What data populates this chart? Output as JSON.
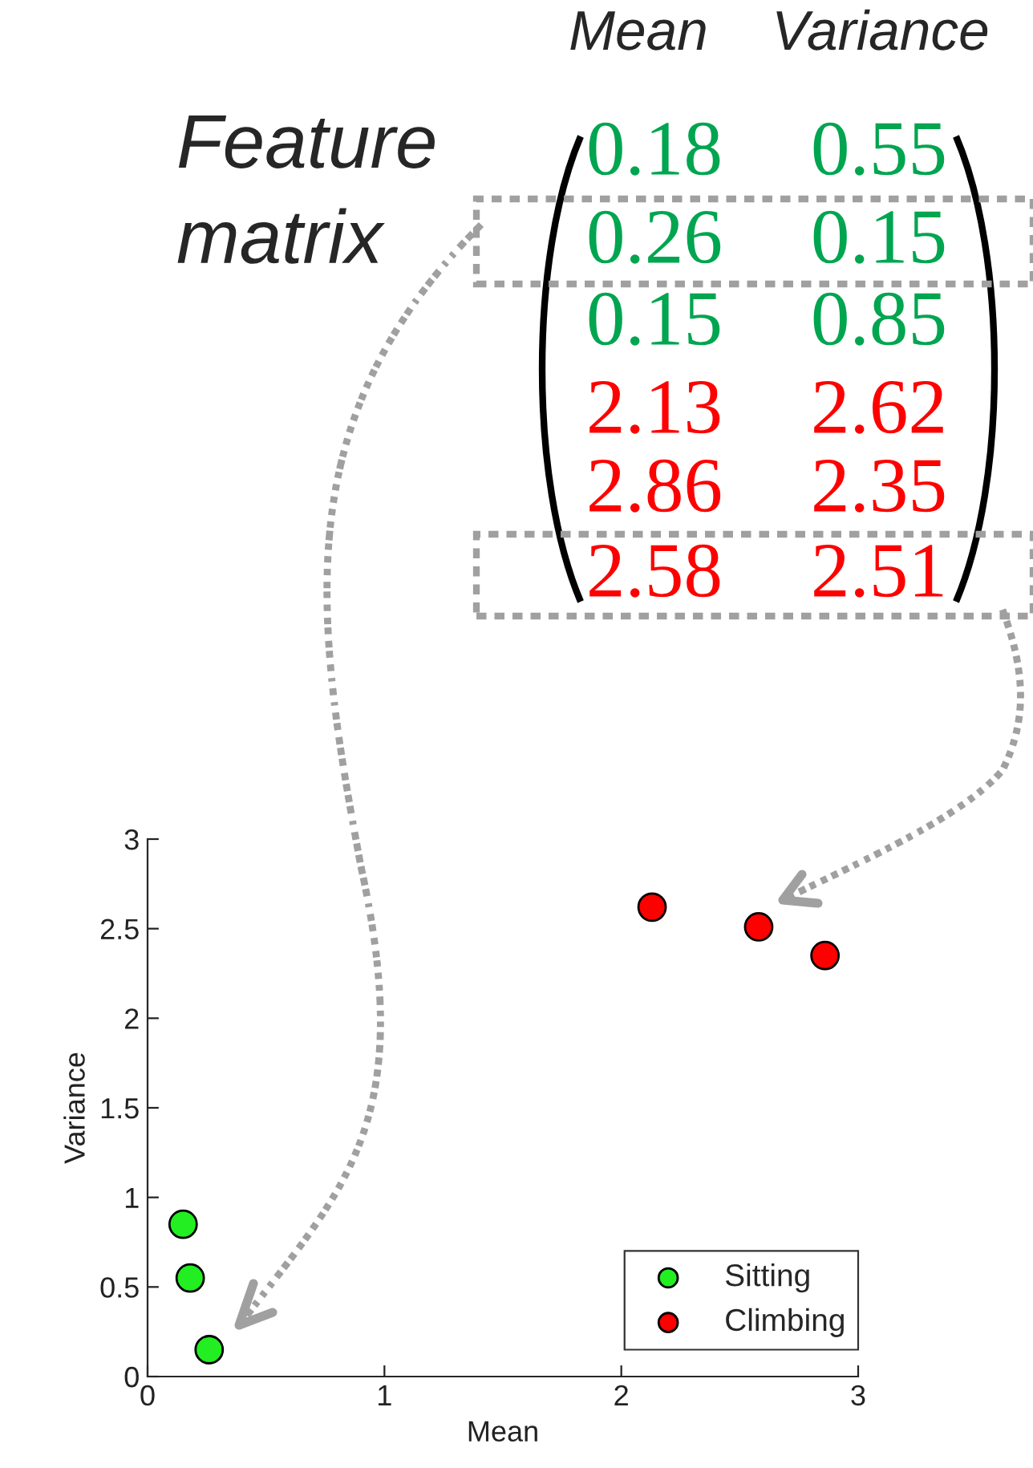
{
  "chart_data": {
    "type": "scatter",
    "xlabel": "Mean",
    "ylabel": "Variance",
    "series": [
      {
        "name": "Sitting",
        "color": "#22ee22",
        "x": [
          0.18,
          0.26,
          0.15
        ],
        "values": [
          0.55,
          0.15,
          0.85
        ]
      },
      {
        "name": "Climbing",
        "color": "#ff0000",
        "x": [
          2.13,
          2.86,
          2.58
        ],
        "values": [
          2.62,
          2.35,
          2.51
        ]
      }
    ],
    "xlim": [
      0,
      3
    ],
    "ylim": [
      0,
      3
    ],
    "xticks": [
      0,
      1,
      2,
      3
    ],
    "yticks": [
      0,
      0.5,
      1,
      1.5,
      2,
      2.5,
      3
    ],
    "marker": "circle",
    "legend": "bottom right",
    "grid": false,
    "annotations": [
      "Feature\nmatrix",
      "Mean",
      "Variance",
      "0.18",
      "0.55",
      "0.26",
      "0.15",
      "0.15",
      "0.85",
      "2.13",
      "2.62",
      "2.86",
      "2.35",
      "2.58",
      "2.51"
    ]
  }
}
